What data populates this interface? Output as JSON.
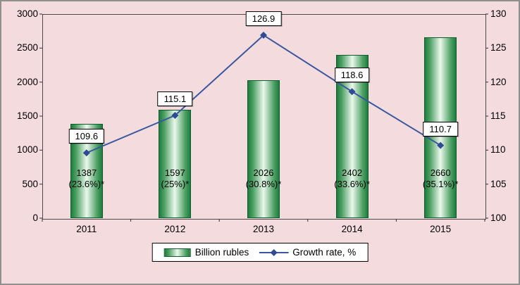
{
  "chart_data": {
    "type": "bar",
    "subtype": "bar-line-combo",
    "categories": [
      "2011",
      "2012",
      "2013",
      "2014",
      "2015"
    ],
    "series": [
      {
        "name": "Billion rubles",
        "type": "bar",
        "axis": "left",
        "values": [
          1387,
          1597,
          2026,
          2402,
          2660
        ],
        "bar_labels": [
          {
            "value": "1387",
            "share": "(23.6%)*"
          },
          {
            "value": "1597",
            "share": "(25%)*"
          },
          {
            "value": "2026",
            "share": "(30.8%)*"
          },
          {
            "value": "2402",
            "share": "(33.6%)*"
          },
          {
            "value": "2660",
            "share": "(35.1%)*"
          }
        ]
      },
      {
        "name": "Growth rate, %",
        "type": "line",
        "axis": "right",
        "values": [
          109.6,
          115.1,
          126.9,
          118.6,
          110.7
        ],
        "point_labels": [
          "109.6",
          "115.1",
          "126.9",
          "118.6",
          "110.7"
        ]
      }
    ],
    "left_axis": {
      "min": 0,
      "max": 3000,
      "step": 500,
      "ticks": [
        "0",
        "500",
        "1000",
        "1500",
        "2000",
        "2500",
        "3000"
      ]
    },
    "right_axis": {
      "min": 100,
      "max": 130,
      "step": 5,
      "ticks": [
        "100",
        "105",
        "110",
        "115",
        "120",
        "125",
        "130"
      ]
    },
    "legend": {
      "position": "bottom",
      "entries": [
        "Billion rubles",
        "Growth rate, %"
      ]
    },
    "grid": false,
    "title": "",
    "xlabel": "",
    "ylabel_left": "",
    "ylabel_right": "",
    "colors": {
      "background": "#f4dbde",
      "bar_dark": "#1d7d3f",
      "bar_light": "#eaf8ec",
      "bar_border": "#0f5c2d",
      "line": "#3a57a0",
      "marker": "#2f4b93",
      "label_box_bg": "#ffffff",
      "label_box_border": "#000000"
    }
  }
}
